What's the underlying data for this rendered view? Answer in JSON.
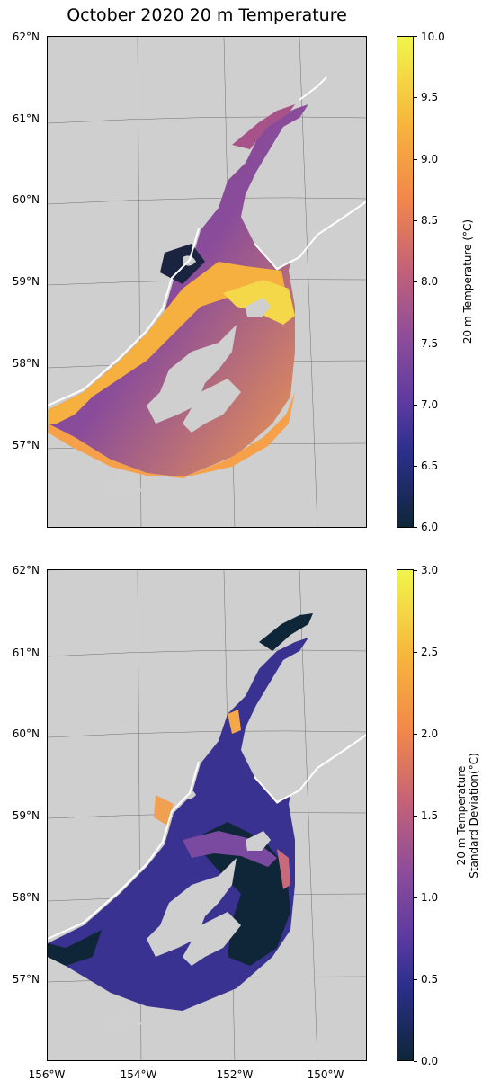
{
  "title": "October 2020 20 m Temperature",
  "lat_labels": [
    "62°N",
    "61°N",
    "60°N",
    "59°N",
    "58°N",
    "57°N"
  ],
  "lon_labels": [
    "156°W",
    "154°W",
    "152°W",
    "150°W"
  ],
  "top_colorbar": {
    "label": "20 m Temperature (°C)",
    "ticks": [
      "10.0",
      "9.5",
      "9.0",
      "8.5",
      "8.0",
      "7.5",
      "7.0",
      "6.5",
      "6.0"
    ],
    "range": [
      6.0,
      10.0
    ]
  },
  "bottom_colorbar": {
    "label_line1": "20 m Temperature",
    "label_line2": "Standard Deviation(°C)",
    "ticks": [
      "3.0",
      "2.5",
      "2.0",
      "1.5",
      "1.0",
      "0.5",
      "0.0"
    ],
    "range": [
      0.0,
      3.0
    ]
  },
  "colors": {
    "land": "#cfcfcf",
    "cmap_low": "#0a1f2e",
    "cmap_mid": "#7a4aa0",
    "cmap_high": "#f0f54e"
  }
}
